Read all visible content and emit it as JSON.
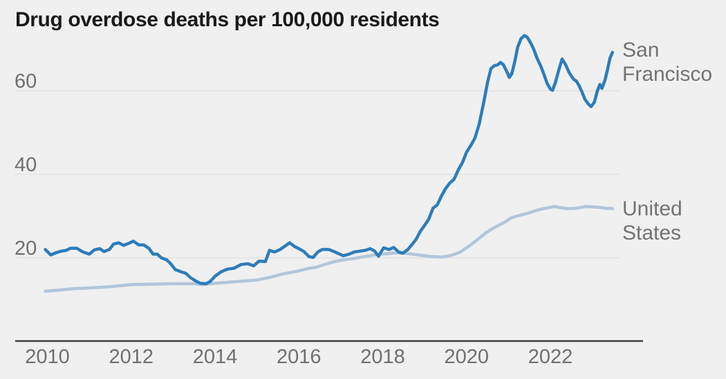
{
  "page": {
    "background": "#f0f0f0"
  },
  "chart_data": {
    "type": "line",
    "title": "Drug overdose deaths per 100,000 residents",
    "xlabel": "",
    "ylabel": "deaths per 100,000 residents",
    "x_ticks": [
      2010,
      2012,
      2014,
      2016,
      2018,
      2020,
      2022
    ],
    "y_ticks": [
      20,
      40,
      60
    ],
    "xlim": [
      2009.9,
      2023.6
    ],
    "ylim": [
      8,
      76
    ],
    "grid": "horizontal-only",
    "legend_position": "labels-at-line-ends-right",
    "colors": {
      "san_francisco_line": "#2d7dbb",
      "united_states_line": "#b2c6da",
      "gridline": "#e1e1e1",
      "axis_line": "#3f3f3f",
      "title_text": "#1a1a1a",
      "tick_text": "#6f6f6f",
      "series_label_text": "#737373",
      "background": "#f0f0f0"
    },
    "series": [
      {
        "name": "San Francisco",
        "color": "#2d7dbb",
        "points": [
          [
            2009.95,
            22.0
          ],
          [
            2010.08,
            20.7
          ],
          [
            2010.2,
            21.2
          ],
          [
            2010.33,
            21.6
          ],
          [
            2010.45,
            21.8
          ],
          [
            2010.55,
            22.3
          ],
          [
            2010.7,
            22.3
          ],
          [
            2010.85,
            21.4
          ],
          [
            2011.0,
            20.9
          ],
          [
            2011.12,
            21.9
          ],
          [
            2011.25,
            22.2
          ],
          [
            2011.35,
            21.5
          ],
          [
            2011.48,
            22.0
          ],
          [
            2011.58,
            23.3
          ],
          [
            2011.7,
            23.6
          ],
          [
            2011.82,
            23.0
          ],
          [
            2011.95,
            23.5
          ],
          [
            2012.05,
            24.0
          ],
          [
            2012.18,
            23.1
          ],
          [
            2012.3,
            23.1
          ],
          [
            2012.42,
            22.3
          ],
          [
            2012.52,
            20.9
          ],
          [
            2012.62,
            20.9
          ],
          [
            2012.72,
            20.0
          ],
          [
            2012.85,
            19.5
          ],
          [
            2012.95,
            18.5
          ],
          [
            2013.05,
            17.2
          ],
          [
            2013.18,
            16.7
          ],
          [
            2013.3,
            16.3
          ],
          [
            2013.42,
            15.2
          ],
          [
            2013.55,
            14.4
          ],
          [
            2013.65,
            13.9
          ],
          [
            2013.78,
            13.8
          ],
          [
            2013.88,
            14.3
          ],
          [
            2014.0,
            15.6
          ],
          [
            2014.15,
            16.7
          ],
          [
            2014.3,
            17.3
          ],
          [
            2014.45,
            17.5
          ],
          [
            2014.62,
            18.4
          ],
          [
            2014.78,
            18.6
          ],
          [
            2014.92,
            18.1
          ],
          [
            2015.05,
            19.2
          ],
          [
            2015.2,
            19.1
          ],
          [
            2015.3,
            21.8
          ],
          [
            2015.42,
            21.4
          ],
          [
            2015.55,
            22.0
          ],
          [
            2015.68,
            22.9
          ],
          [
            2015.78,
            23.6
          ],
          [
            2015.9,
            22.7
          ],
          [
            2016.0,
            22.2
          ],
          [
            2016.12,
            21.5
          ],
          [
            2016.24,
            20.3
          ],
          [
            2016.34,
            20.1
          ],
          [
            2016.45,
            21.4
          ],
          [
            2016.56,
            22.0
          ],
          [
            2016.72,
            22.0
          ],
          [
            2016.84,
            21.5
          ],
          [
            2016.95,
            21.0
          ],
          [
            2017.06,
            20.5
          ],
          [
            2017.2,
            20.9
          ],
          [
            2017.32,
            21.4
          ],
          [
            2017.45,
            21.6
          ],
          [
            2017.58,
            21.8
          ],
          [
            2017.7,
            22.2
          ],
          [
            2017.8,
            21.7
          ],
          [
            2017.9,
            20.4
          ],
          [
            2018.02,
            22.4
          ],
          [
            2018.15,
            22.0
          ],
          [
            2018.26,
            22.5
          ],
          [
            2018.38,
            21.4
          ],
          [
            2018.48,
            21.1
          ],
          [
            2018.6,
            22.0
          ],
          [
            2018.7,
            23.2
          ],
          [
            2018.8,
            24.5
          ],
          [
            2018.9,
            26.4
          ],
          [
            2019.0,
            27.8
          ],
          [
            2019.1,
            29.3
          ],
          [
            2019.2,
            31.9
          ],
          [
            2019.3,
            32.7
          ],
          [
            2019.4,
            34.8
          ],
          [
            2019.5,
            36.6
          ],
          [
            2019.6,
            37.9
          ],
          [
            2019.7,
            38.8
          ],
          [
            2019.8,
            41.0
          ],
          [
            2019.9,
            42.8
          ],
          [
            2020.0,
            45.3
          ],
          [
            2020.1,
            46.9
          ],
          [
            2020.2,
            48.7
          ],
          [
            2020.3,
            52.0
          ],
          [
            2020.4,
            56.8
          ],
          [
            2020.5,
            62.0
          ],
          [
            2020.58,
            65.3
          ],
          [
            2020.66,
            66.0
          ],
          [
            2020.74,
            66.2
          ],
          [
            2020.81,
            66.8
          ],
          [
            2020.88,
            66.2
          ],
          [
            2020.95,
            64.8
          ],
          [
            2021.02,
            63.2
          ],
          [
            2021.08,
            64.1
          ],
          [
            2021.15,
            67.0
          ],
          [
            2021.22,
            70.5
          ],
          [
            2021.3,
            72.5
          ],
          [
            2021.38,
            73.2
          ],
          [
            2021.45,
            72.8
          ],
          [
            2021.52,
            71.6
          ],
          [
            2021.6,
            70.0
          ],
          [
            2021.68,
            67.8
          ],
          [
            2021.77,
            65.9
          ],
          [
            2021.85,
            63.8
          ],
          [
            2021.92,
            61.8
          ],
          [
            2022.0,
            60.4
          ],
          [
            2022.05,
            60.1
          ],
          [
            2022.12,
            62.0
          ],
          [
            2022.2,
            65.0
          ],
          [
            2022.28,
            67.6
          ],
          [
            2022.36,
            66.3
          ],
          [
            2022.45,
            64.3
          ],
          [
            2022.55,
            62.8
          ],
          [
            2022.62,
            62.3
          ],
          [
            2022.68,
            61.3
          ],
          [
            2022.75,
            59.8
          ],
          [
            2022.82,
            58.0
          ],
          [
            2022.9,
            56.9
          ],
          [
            2022.97,
            56.2
          ],
          [
            2023.05,
            57.3
          ],
          [
            2023.12,
            60.0
          ],
          [
            2023.18,
            61.5
          ],
          [
            2023.23,
            60.6
          ],
          [
            2023.3,
            62.5
          ],
          [
            2023.36,
            65.0
          ],
          [
            2023.42,
            67.8
          ],
          [
            2023.48,
            69.2
          ]
        ]
      },
      {
        "name": "United States",
        "color": "#b2c6da",
        "points": [
          [
            2009.95,
            12.0
          ],
          [
            2010.3,
            12.3
          ],
          [
            2010.6,
            12.6
          ],
          [
            2011.0,
            12.8
          ],
          [
            2011.5,
            13.1
          ],
          [
            2012.0,
            13.6
          ],
          [
            2012.5,
            13.7
          ],
          [
            2013.0,
            13.8
          ],
          [
            2013.5,
            13.8
          ],
          [
            2013.7,
            13.6
          ],
          [
            2014.0,
            13.9
          ],
          [
            2014.5,
            14.3
          ],
          [
            2015.0,
            14.7
          ],
          [
            2015.3,
            15.3
          ],
          [
            2015.6,
            16.1
          ],
          [
            2015.8,
            16.5
          ],
          [
            2016.0,
            16.9
          ],
          [
            2016.2,
            17.4
          ],
          [
            2016.4,
            17.7
          ],
          [
            2016.55,
            18.2
          ],
          [
            2016.7,
            18.7
          ],
          [
            2016.85,
            19.1
          ],
          [
            2017.0,
            19.4
          ],
          [
            2017.2,
            19.7
          ],
          [
            2017.35,
            19.9
          ],
          [
            2017.5,
            20.2
          ],
          [
            2017.7,
            20.5
          ],
          [
            2017.85,
            20.8
          ],
          [
            2018.0,
            20.9
          ],
          [
            2018.2,
            21.1
          ],
          [
            2018.35,
            21.2
          ],
          [
            2018.5,
            21.1
          ],
          [
            2018.7,
            20.9
          ],
          [
            2018.85,
            20.7
          ],
          [
            2019.0,
            20.5
          ],
          [
            2019.2,
            20.3
          ],
          [
            2019.4,
            20.2
          ],
          [
            2019.55,
            20.4
          ],
          [
            2019.7,
            20.8
          ],
          [
            2019.85,
            21.4
          ],
          [
            2020.0,
            22.4
          ],
          [
            2020.15,
            23.5
          ],
          [
            2020.3,
            24.7
          ],
          [
            2020.45,
            25.9
          ],
          [
            2020.6,
            26.9
          ],
          [
            2020.75,
            27.7
          ],
          [
            2020.9,
            28.5
          ],
          [
            2021.05,
            29.5
          ],
          [
            2021.2,
            30.0
          ],
          [
            2021.35,
            30.4
          ],
          [
            2021.5,
            30.8
          ],
          [
            2021.65,
            31.3
          ],
          [
            2021.8,
            31.7
          ],
          [
            2021.95,
            32.0
          ],
          [
            2022.1,
            32.3
          ],
          [
            2022.25,
            32.0
          ],
          [
            2022.4,
            31.8
          ],
          [
            2022.55,
            31.8
          ],
          [
            2022.7,
            32.0
          ],
          [
            2022.85,
            32.3
          ],
          [
            2023.0,
            32.2
          ],
          [
            2023.15,
            32.1
          ],
          [
            2023.3,
            31.9
          ],
          [
            2023.48,
            31.8
          ]
        ]
      }
    ]
  }
}
